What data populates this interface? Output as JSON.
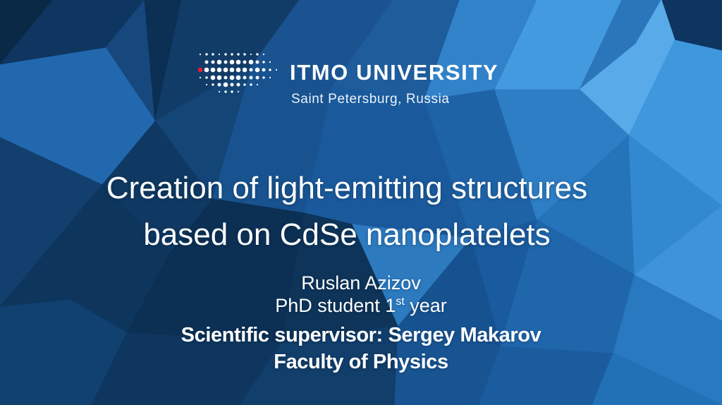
{
  "slide": {
    "logo": {
      "wordmark": "ITMO UNIVERSITY",
      "location": "Saint Petersburg, Russia"
    },
    "title": {
      "line1": "Creation of light-emitting structures",
      "line2": "based on CdSe nanoplatelets"
    },
    "byline": {
      "author": "Ruslan Azizov",
      "degree_prefix": "PhD student 1",
      "degree_sup": "st",
      "degree_suffix": " year",
      "supervisor": "Scientific supervisor: Sergey Makarov",
      "faculty": "Faculty of Physics"
    },
    "colors": {
      "background_base": "#16518c",
      "text": "#ffffff",
      "logo_dot": "#ffffff",
      "logo_accent_red": "#e31e30"
    }
  }
}
